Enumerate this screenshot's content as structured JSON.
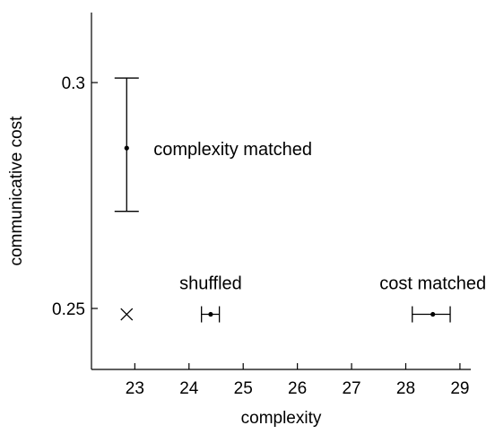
{
  "chart_data": {
    "type": "scatter",
    "title": "",
    "xlabel": "complexity",
    "ylabel": "communicative cost",
    "xlim": [
      22.2,
      29.2
    ],
    "ylim": [
      0.2365,
      0.3155
    ],
    "x_ticks": [
      23,
      24,
      25,
      26,
      27,
      28,
      29
    ],
    "y_ticks": [
      0.25,
      0.3
    ],
    "x_tick_labels": [
      "23",
      "24",
      "25",
      "26",
      "27",
      "28",
      "29"
    ],
    "y_tick_labels": [
      "0.25",
      "0.3"
    ],
    "grid": false,
    "legend": null,
    "series": [
      {
        "name": "complexity matched",
        "marker": "dot",
        "x": 22.85,
        "y": 0.2855,
        "y_err_low": 0.2715,
        "y_err_high": 0.301,
        "label_placement": "right"
      },
      {
        "name": "shuffled",
        "marker": "dot",
        "x": 24.4,
        "y": 0.2487,
        "x_err_low": 24.23,
        "x_err_high": 24.56,
        "label_placement": "above"
      },
      {
        "name": "cost matched",
        "marker": "dot",
        "x": 28.5,
        "y": 0.2487,
        "x_err_low": 28.12,
        "x_err_high": 28.82,
        "label_placement": "above"
      },
      {
        "name": "",
        "marker": "x",
        "x": 22.85,
        "y": 0.2487
      }
    ]
  }
}
